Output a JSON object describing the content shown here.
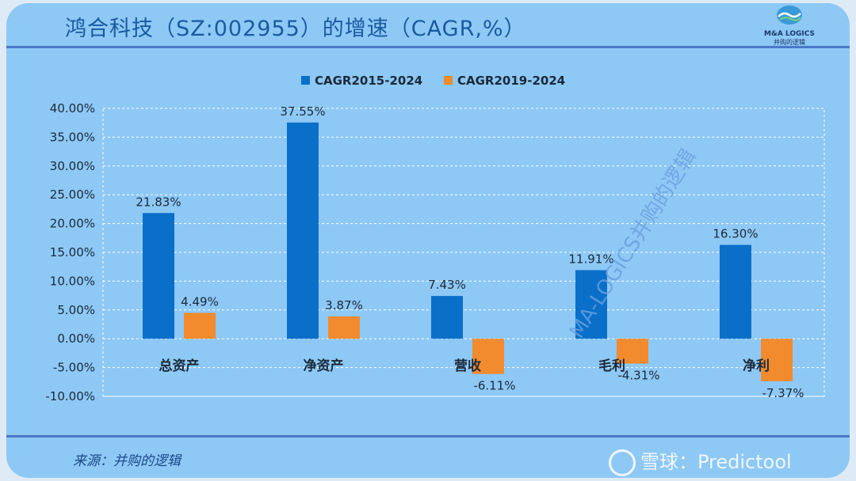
{
  "title": "鸿合科技（SZ:002955）的增速（CAGR,%）",
  "logo": {
    "line1": "M&A LOGICS",
    "line2": "并购的逻辑"
  },
  "source": "来源：并购的逻辑",
  "watermark_text": "雪球：Predictool",
  "diagonal_watermark": "MA-LOGICS并购的逻辑",
  "colors": {
    "series1": "#0a6fc8",
    "series2": "#f28a2e",
    "background": "#8ec8f5",
    "title": "#1a5aa0"
  },
  "chart_data": {
    "type": "bar",
    "categories": [
      "总资产",
      "净资产",
      "营收",
      "毛利",
      "净利"
    ],
    "series": [
      {
        "name": "CAGR2015-2024",
        "values": [
          21.83,
          37.55,
          7.43,
          11.91,
          16.3
        ],
        "labels": [
          "21.83%",
          "37.55%",
          "7.43%",
          "11.91%",
          "16.30%"
        ]
      },
      {
        "name": "CAGR2019-2024",
        "values": [
          4.49,
          3.87,
          -6.11,
          -4.31,
          -7.37
        ],
        "labels": [
          "4.49%",
          "3.87%",
          "-6.11%",
          "-4.31%",
          "-7.37%"
        ]
      }
    ],
    "ylim": [
      -10,
      40
    ],
    "yticks": [
      40,
      35,
      30,
      25,
      20,
      15,
      10,
      5,
      0,
      -5,
      -10
    ],
    "ytick_labels": [
      "40.00%",
      "35.00%",
      "30.00%",
      "25.00%",
      "20.00%",
      "15.00%",
      "10.00%",
      "5.00%",
      "0.00%",
      "-5.00%",
      "-10.00%"
    ],
    "grid": true,
    "legend": "top-center"
  }
}
